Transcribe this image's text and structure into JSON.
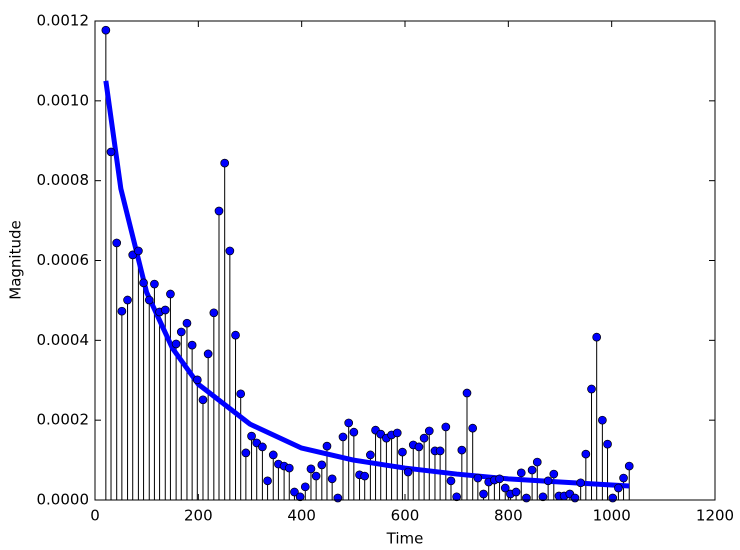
{
  "chart_data": {
    "type": "stem",
    "x_label": "Time",
    "y_label": "Magnitude",
    "xlim": [
      0,
      1200
    ],
    "xticks": [
      0,
      200,
      400,
      600,
      800,
      1000,
      1200
    ],
    "ylim": [
      0,
      0.0012
    ],
    "yticks": [
      {
        "value": 0,
        "label": "0.0000"
      },
      {
        "value": 0.0002,
        "label": "0.0002"
      },
      {
        "value": 0.0004,
        "label": "0.0004"
      },
      {
        "value": 0.0006,
        "label": "0.0006"
      },
      {
        "value": 0.0008,
        "label": "0.0008"
      },
      {
        "value": 0.001,
        "label": "0.0010"
      },
      {
        "value": 0.0012,
        "label": "0.0012"
      }
    ],
    "stem_color": "#000000",
    "marker_color": "#0000ff",
    "x": [
      21,
      31,
      42,
      52,
      63,
      73,
      84,
      94,
      105,
      115,
      125,
      136,
      146,
      157,
      167,
      178,
      188,
      198,
      209,
      219,
      230,
      240,
      251,
      261,
      272,
      282,
      292,
      303,
      313,
      324,
      334,
      345,
      355,
      366,
      376,
      386,
      397,
      407,
      418,
      428,
      439,
      449,
      459,
      470,
      480,
      491,
      501,
      512,
      522,
      533,
      543,
      553,
      564,
      574,
      585,
      595,
      606,
      616,
      627,
      637,
      647,
      658,
      668,
      679,
      689,
      700,
      710,
      720,
      731,
      741,
      752,
      762,
      773,
      783,
      794,
      804,
      815,
      825,
      835,
      846,
      856,
      867,
      877,
      888,
      898,
      908,
      919,
      929,
      940,
      950,
      961,
      971,
      982,
      992,
      1002,
      1013,
      1023,
      1034
    ],
    "values": [
      0.001177,
      0.000872,
      0.000644,
      0.000473,
      0.000501,
      0.000614,
      0.000624,
      0.000544,
      0.000501,
      0.000541,
      0.000471,
      0.000476,
      0.000516,
      0.000391,
      0.000421,
      0.000443,
      0.000388,
      0.000301,
      0.000251,
      0.000366,
      0.000469,
      0.000724,
      0.000844,
      0.000624,
      0.000413,
      0.000266,
      0.000118,
      0.00016,
      0.000143,
      0.000133,
      4.8e-05,
      0.000113,
      9e-05,
      8.5e-05,
      8e-05,
      2e-05,
      8e-06,
      3.3e-05,
      7.8e-05,
      6e-05,
      8.8e-05,
      0.000135,
      5.3e-05,
      5e-06,
      0.000158,
      0.000193,
      0.00017,
      6.3e-05,
      6e-05,
      0.000113,
      0.000175,
      0.000165,
      0.000155,
      0.000163,
      0.000168,
      0.00012,
      7e-05,
      0.000138,
      0.000133,
      0.000155,
      0.000173,
      0.000123,
      0.000123,
      0.000183,
      4.8e-05,
      8e-06,
      0.000125,
      0.000268,
      0.00018,
      5.5e-05,
      1.5e-05,
      4.5e-05,
      5e-05,
      5.3e-05,
      3e-05,
      1.5e-05,
      2e-05,
      6.8e-05,
      5e-06,
      7.5e-05,
      9.5e-05,
      8e-06,
      4.8e-05,
      6.5e-05,
      1e-05,
      1e-05,
      1.5e-05,
      5e-06,
      4.3e-05,
      0.000115,
      0.000278,
      0.000408,
      0.0002,
      0.00014,
      5e-06,
      3e-05,
      5.5e-05,
      8.5e-05
    ],
    "fit": {
      "color": "#0000ff",
      "x": [
        21,
        50,
        100,
        150,
        200,
        300,
        400,
        500,
        600,
        700,
        800,
        900,
        1034
      ],
      "values": [
        0.00105,
        0.00078,
        0.00052,
        0.00038,
        0.00029,
        0.00019,
        0.00013,
        0.0001,
        8e-05,
        6.5e-05,
        5.3e-05,
        4.5e-05,
        3.5e-05
      ]
    }
  }
}
